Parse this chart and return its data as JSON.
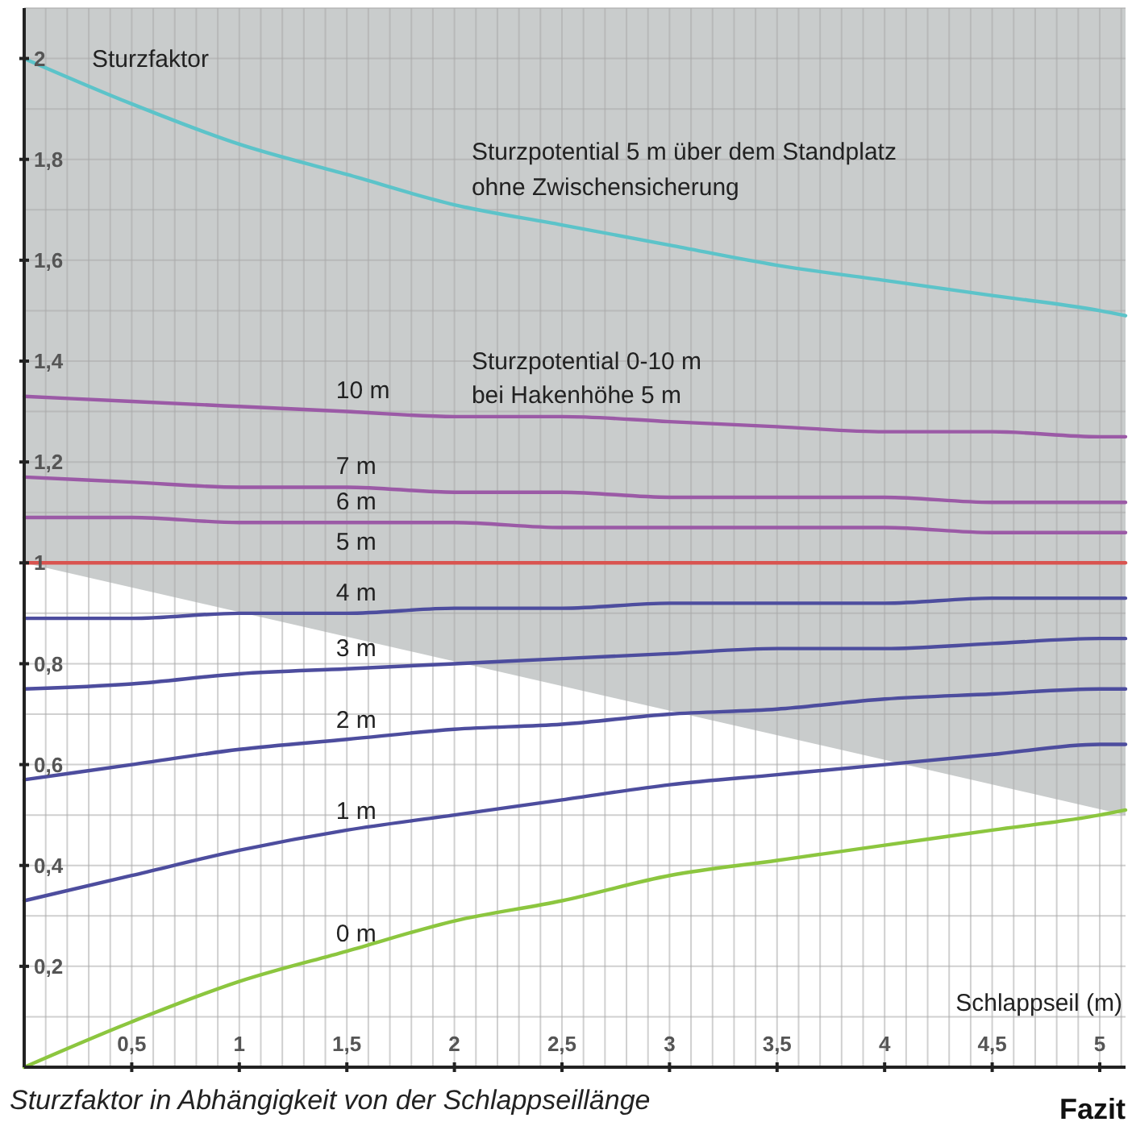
{
  "chart_data": {
    "type": "line",
    "xlabel": "Schlappseil (m)",
    "ylabel": "Sturzfaktor",
    "x": [
      0,
      0.5,
      1,
      1.5,
      2,
      2.5,
      3,
      3.5,
      4,
      4.5,
      5,
      5.12
    ],
    "xlim": [
      0,
      5.12
    ],
    "ylim": [
      0,
      2.1
    ],
    "grid": true,
    "legend": false,
    "marker": "none",
    "line_style": "solid",
    "xticks": [
      {
        "value": 0,
        "label": null
      },
      {
        "value": 0.1,
        "label": null
      },
      {
        "value": 0.2,
        "label": null
      },
      {
        "value": 0.3,
        "label": null
      },
      {
        "value": 0.4,
        "label": null
      },
      {
        "value": 0.5,
        "label": "0,5"
      },
      {
        "value": 0.6,
        "label": null
      },
      {
        "value": 0.7,
        "label": null
      },
      {
        "value": 0.8,
        "label": null
      },
      {
        "value": 0.9,
        "label": null
      },
      1,
      {
        "value": 1.1,
        "label": null
      },
      {
        "value": 1.2,
        "label": null
      },
      {
        "value": 1.3,
        "label": null
      },
      {
        "value": 1.4,
        "label": null
      },
      {
        "value": 1.5,
        "label": "1,5"
      },
      {
        "value": 1.6,
        "label": null
      },
      {
        "value": 1.7,
        "label": null
      },
      {
        "value": 1.8,
        "label": null
      },
      {
        "value": 1.9,
        "label": null
      },
      2,
      {
        "value": 2.1,
        "label": null
      },
      {
        "value": 2.2,
        "label": null
      },
      {
        "value": 2.3,
        "label": null
      },
      {
        "value": 2.4,
        "label": null
      },
      {
        "value": 2.5,
        "label": "2,5"
      },
      {
        "value": 2.6,
        "label": null
      },
      {
        "value": 2.7,
        "label": null
      },
      {
        "value": 2.8,
        "label": null
      },
      {
        "value": 2.9,
        "label": null
      },
      3,
      {
        "value": 3.1,
        "label": null
      },
      {
        "value": 3.2,
        "label": null
      },
      {
        "value": 3.3,
        "label": null
      },
      {
        "value": 3.4,
        "label": null
      },
      {
        "value": 3.5,
        "label": "3,5"
      },
      {
        "value": 3.6,
        "label": null
      },
      {
        "value": 3.7,
        "label": null
      },
      {
        "value": 3.8,
        "label": null
      },
      {
        "value": 3.9,
        "label": null
      },
      4,
      {
        "value": 4.1,
        "label": null
      },
      {
        "value": 4.2,
        "label": null
      },
      {
        "value": 4.3,
        "label": null
      },
      {
        "value": 4.4,
        "label": null
      },
      {
        "value": 4.5,
        "label": "4,5"
      },
      {
        "value": 4.6,
        "label": null
      },
      {
        "value": 4.7,
        "label": null
      },
      {
        "value": 4.8,
        "label": null
      },
      {
        "value": 4.9,
        "label": null
      },
      5,
      {
        "value": 5.1,
        "label": null
      }
    ],
    "yticks": [
      {
        "value": 0,
        "label": null
      },
      {
        "value": 0.1,
        "label": null
      },
      {
        "value": 0.2,
        "label": "0,2"
      },
      {
        "value": 0.3,
        "label": null
      },
      {
        "value": 0.4,
        "label": "0,4"
      },
      {
        "value": 0.5,
        "label": null
      },
      {
        "value": 0.6,
        "label": "0,6"
      },
      {
        "value": 0.7,
        "label": null
      },
      {
        "value": 0.8,
        "label": "0,8"
      },
      {
        "value": 0.9,
        "label": null
      },
      1,
      {
        "value": 1.1,
        "label": null
      },
      {
        "value": 1.2,
        "label": "1,2"
      },
      {
        "value": 1.3,
        "label": null
      },
      {
        "value": 1.4,
        "label": "1,4"
      },
      {
        "value": 1.5,
        "label": null
      },
      {
        "value": 1.6,
        "label": "1,6"
      },
      {
        "value": 1.7,
        "label": null
      },
      {
        "value": 1.8,
        "label": "1,8"
      },
      {
        "value": 1.9,
        "label": null
      },
      2,
      {
        "value": 2.1,
        "label": null
      }
    ],
    "series": [
      {
        "type": "area",
        "x": [
          0,
          5.12
        ],
        "values": [
          1,
          0.5
        ],
        "color": "#ffffff"
      },
      {
        "name": "Sturzpotential 5 m über dem Standplatz\nohne Zwischensicherung",
        "color": "#5cc3c9",
        "values": [
          2,
          1.91,
          1.83,
          1.77,
          1.71,
          1.67,
          1.63,
          1.59,
          1.56,
          1.53,
          1.5,
          1.49
        ]
      },
      {
        "name": "10 m",
        "color": "#9b5aa6",
        "values": [
          1.33,
          1.32,
          1.31,
          1.3,
          1.29,
          1.29,
          1.28,
          1.27,
          1.26,
          1.26,
          1.25,
          1.25
        ]
      },
      {
        "name": "7 m",
        "color": "#9b5aa6",
        "values": [
          1.17,
          1.16,
          1.15,
          1.15,
          1.14,
          1.14,
          1.13,
          1.13,
          1.13,
          1.12,
          1.12,
          1.12
        ]
      },
      {
        "name": "6 m",
        "color": "#9b5aa6",
        "values": [
          1.09,
          1.09,
          1.08,
          1.08,
          1.08,
          1.07,
          1.07,
          1.07,
          1.07,
          1.06,
          1.06,
          1.06
        ]
      },
      {
        "name": "5 m",
        "color": "#d9534f",
        "values": [
          1,
          1,
          1,
          1,
          1,
          1,
          1,
          1,
          1,
          1,
          1,
          1
        ]
      },
      {
        "name": "4 m",
        "color": "#4d4d9e",
        "values": [
          0.89,
          0.89,
          0.9,
          0.9,
          0.91,
          0.91,
          0.92,
          0.92,
          0.92,
          0.93,
          0.93,
          0.93
        ]
      },
      {
        "name": "3 m",
        "color": "#4d4d9e",
        "values": [
          0.75,
          0.76,
          0.78,
          0.79,
          0.8,
          0.81,
          0.82,
          0.83,
          0.83,
          0.84,
          0.85,
          0.85
        ]
      },
      {
        "name": "2 m",
        "color": "#4d4d9e",
        "values": [
          0.57,
          0.6,
          0.63,
          0.65,
          0.67,
          0.68,
          0.7,
          0.71,
          0.73,
          0.74,
          0.75,
          0.75
        ]
      },
      {
        "name": "1 m",
        "color": "#4d4d9e",
        "values": [
          0.33,
          0.38,
          0.43,
          0.47,
          0.5,
          0.53,
          0.56,
          0.58,
          0.6,
          0.62,
          0.64,
          0.64
        ]
      },
      {
        "name": "0 m",
        "color": "#8cc63f",
        "values": [
          0,
          0.09,
          0.17,
          0.23,
          0.29,
          0.33,
          0.38,
          0.41,
          0.44,
          0.47,
          0.5,
          0.51
        ]
      }
    ],
    "annotations": [
      "Sturzpotential 0-10 m\nbei Hakenhöhe 5 m",
      "Sturzfaktor in Abhängigkeit von der Schlappseillänge",
      "Fazit"
    ]
  }
}
